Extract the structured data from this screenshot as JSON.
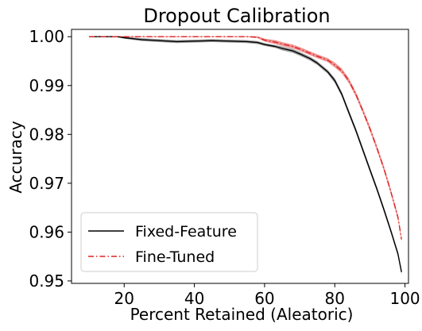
{
  "chart_data": {
    "type": "line",
    "title": "Dropout Calibration",
    "xlabel": "Percent Retained (Aleatoric)",
    "ylabel": "Accuracy",
    "xlim": [
      5,
      101
    ],
    "ylim": [
      0.9495,
      1.0015
    ],
    "xticks": [
      20,
      40,
      60,
      80,
      100
    ],
    "yticks": [
      0.95,
      0.96,
      0.97,
      0.98,
      0.99,
      1.0
    ],
    "ytick_labels": [
      "0.95",
      "0.96",
      "0.97",
      "0.98",
      "0.99",
      "1.00"
    ],
    "grid": false,
    "legend_position": "lower-left",
    "series": [
      {
        "name": "Fixed-Feature",
        "color": "#000000",
        "band_color": "#555555",
        "line_style": "solid",
        "x": [
          10,
          15,
          18,
          20,
          25,
          30,
          35,
          40,
          45,
          50,
          55,
          58,
          60,
          63,
          65,
          68,
          70,
          73,
          75,
          78,
          80,
          82,
          84,
          86,
          88,
          90,
          92,
          94,
          96,
          98,
          99
        ],
        "y": [
          1.0,
          1.0,
          1.0,
          0.9998,
          0.9994,
          0.9992,
          0.999,
          0.9991,
          0.9992,
          0.9991,
          0.999,
          0.9988,
          0.9984,
          0.998,
          0.9976,
          0.9971,
          0.9965,
          0.9955,
          0.9946,
          0.9928,
          0.991,
          0.9882,
          0.9845,
          0.9808,
          0.9768,
          0.9728,
          0.9688,
          0.9646,
          0.9602,
          0.9555,
          0.9518
        ],
        "band": [
          0.0001,
          0.0001,
          0.0001,
          0.0002,
          0.0003,
          0.0003,
          0.0003,
          0.0003,
          0.0003,
          0.0003,
          0.0003,
          0.0003,
          0.0003,
          0.0003,
          0.0004,
          0.0004,
          0.0004,
          0.0004,
          0.0004,
          0.0004,
          0.0005,
          0.0005,
          0.0005,
          0.0005,
          0.0005,
          0.0005,
          0.0005,
          0.0005,
          0.0005,
          0.0005,
          0.0005
        ]
      },
      {
        "name": "Fine-Tuned",
        "color": "#e02020",
        "band_color": "#e04040",
        "line_style": "dashdot",
        "x": [
          10,
          20,
          30,
          40,
          50,
          55,
          58,
          60,
          63,
          65,
          68,
          70,
          73,
          75,
          78,
          80,
          82,
          84,
          86,
          88,
          90,
          92,
          94,
          96,
          98,
          99
        ],
        "y": [
          1.0,
          1.0,
          1.0,
          1.0,
          1.0,
          1.0,
          0.9999,
          0.9993,
          0.9989,
          0.9985,
          0.998,
          0.9975,
          0.9966,
          0.996,
          0.9952,
          0.9942,
          0.993,
          0.991,
          0.9882,
          0.9848,
          0.9812,
          0.9772,
          0.973,
          0.9682,
          0.963,
          0.9585
        ],
        "band": [
          0.0001,
          0.0001,
          0.0001,
          0.0001,
          0.0001,
          0.0001,
          0.0002,
          0.0003,
          0.0004,
          0.0004,
          0.0004,
          0.0004,
          0.0004,
          0.0004,
          0.0004,
          0.0005,
          0.0005,
          0.0005,
          0.0005,
          0.0005,
          0.0005,
          0.0005,
          0.0005,
          0.0005,
          0.0005,
          0.0005
        ]
      }
    ]
  }
}
